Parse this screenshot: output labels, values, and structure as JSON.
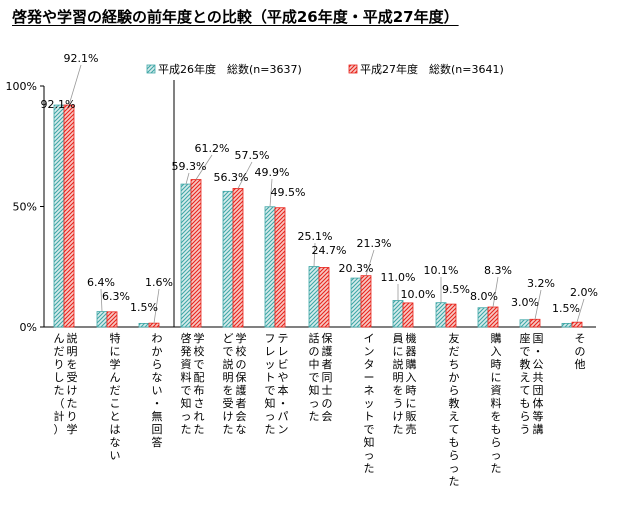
{
  "chart_data": {
    "type": "bar",
    "title": "啓発や学習の経験の前年度との比較（平成26年度・平成27年度）",
    "ylim": [
      0,
      100
    ],
    "yticks": [
      "0%",
      "50%",
      "100%"
    ],
    "grid": false,
    "legend_position": "top",
    "categories": [
      "説明を受けたり学んだりした（計）",
      "特に学んだことはない",
      "わからない・無回答",
      "学校で配布された啓発資料で知った",
      "学校の保護者会などで説明を受けた",
      "テレビや本・パンフレットで知った",
      "保護者同士の会話の中で知った",
      "インターネットで知った",
      "機器購入時に販売員に説明をうけた",
      "友だちから教えてもらった",
      "購入時に資料をもらった",
      "国・公共団体等講座で教えてもらう",
      "その他"
    ],
    "series": [
      {
        "name": "平成26年度　総数(n=3637)",
        "color": "#3fa7a7",
        "values": [
          92.1,
          6.4,
          1.5,
          59.3,
          56.3,
          49.9,
          25.1,
          20.3,
          11.0,
          10.1,
          8.0,
          3.0,
          1.5
        ],
        "labels": [
          "92.1%",
          "6.4%",
          "1.5%",
          "59.3%",
          "56.3%",
          "49.9%",
          "25.1%",
          "20.3%",
          "11.0%",
          "10.1%",
          "8.0%",
          "3.0%",
          "1.5%"
        ]
      },
      {
        "name": "平成27年度　総数(n=3641)",
        "color": "#e8241c",
        "values": [
          92.1,
          6.3,
          1.6,
          61.2,
          57.5,
          49.5,
          24.7,
          21.3,
          10.0,
          9.5,
          8.3,
          3.2,
          2.0
        ],
        "labels": [
          "92.1%",
          "6.3%",
          "1.6%",
          "61.2%",
          "57.5%",
          "49.5%",
          "24.7%",
          "21.3%",
          "10.0%",
          "9.5%",
          "8.3%",
          "3.2%",
          "2.0%"
        ]
      }
    ]
  }
}
